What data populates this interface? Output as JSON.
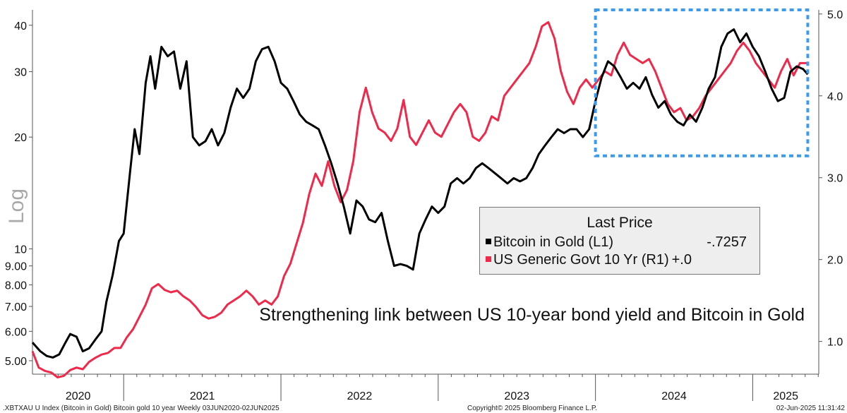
{
  "chart_data": {
    "type": "line",
    "title": "",
    "annotation": "Strengthening link between US 10-year bond yield and Bitcoin in Gold",
    "left_axis": {
      "label": "Log",
      "scale": "log",
      "range": [
        4.6,
        44
      ],
      "ticks": [
        "40",
        "30",
        "20",
        "10",
        "9.00",
        "8.00",
        "7.00",
        "6.00",
        "5.00"
      ],
      "tick_values": [
        40,
        30,
        20,
        10,
        9,
        8,
        7,
        6,
        5
      ]
    },
    "right_axis": {
      "range": [
        0.6,
        5.05
      ],
      "ticks": [
        "5.0",
        "4.0",
        "3.0",
        "2.0",
        "1.0"
      ],
      "tick_values": [
        5,
        4,
        3,
        2,
        1
      ]
    },
    "x_axis": {
      "range": [
        2020.42,
        2025.42
      ],
      "year_labels": [
        "2020",
        "2021",
        "2022",
        "2023",
        "2024",
        "2025"
      ]
    },
    "legend": {
      "title": "Last Price",
      "entries": [
        {
          "name": "Bitcoin in Gold  (L1)",
          "value": "-.7257",
          "color": "#000000"
        },
        {
          "name": "US Generic Govt 10 Yr  (R1)",
          "value": "+.0",
          "color": "#f0284a"
        }
      ]
    },
    "highlight_box": {
      "x_range": [
        2024.0,
        2025.35
      ],
      "left_y_range": [
        17.8,
        44
      ],
      "color": "#3d9be9"
    },
    "series": [
      {
        "name": "Bitcoin in Gold",
        "axis": "left",
        "color": "#000000",
        "points": [
          [
            2020.42,
            5.6
          ],
          [
            2020.47,
            5.3
          ],
          [
            2020.51,
            5.15
          ],
          [
            2020.55,
            5.1
          ],
          [
            2020.59,
            5.2
          ],
          [
            2020.63,
            5.6
          ],
          [
            2020.66,
            5.9
          ],
          [
            2020.7,
            5.8
          ],
          [
            2020.74,
            5.3
          ],
          [
            2020.78,
            5.4
          ],
          [
            2020.82,
            5.7
          ],
          [
            2020.86,
            6.0
          ],
          [
            2020.89,
            7.2
          ],
          [
            2020.93,
            8.5
          ],
          [
            2020.97,
            10.5
          ],
          [
            2021.0,
            11
          ],
          [
            2021.04,
            16
          ],
          [
            2021.07,
            21
          ],
          [
            2021.1,
            18
          ],
          [
            2021.14,
            28
          ],
          [
            2021.17,
            33
          ],
          [
            2021.2,
            27
          ],
          [
            2021.24,
            35
          ],
          [
            2021.28,
            33
          ],
          [
            2021.32,
            34
          ],
          [
            2021.36,
            27
          ],
          [
            2021.4,
            32
          ],
          [
            2021.44,
            20
          ],
          [
            2021.48,
            19
          ],
          [
            2021.52,
            19.5
          ],
          [
            2021.56,
            21
          ],
          [
            2021.6,
            19
          ],
          [
            2021.64,
            20.5
          ],
          [
            2021.68,
            24
          ],
          [
            2021.72,
            27
          ],
          [
            2021.76,
            25.5
          ],
          [
            2021.8,
            27
          ],
          [
            2021.84,
            32
          ],
          [
            2021.88,
            34.5
          ],
          [
            2021.92,
            35
          ],
          [
            2021.96,
            32
          ],
          [
            2022.0,
            28
          ],
          [
            2022.04,
            27
          ],
          [
            2022.08,
            25
          ],
          [
            2022.12,
            23
          ],
          [
            2022.16,
            22
          ],
          [
            2022.2,
            21.5
          ],
          [
            2022.24,
            21
          ],
          [
            2022.28,
            19
          ],
          [
            2022.32,
            17
          ],
          [
            2022.36,
            15
          ],
          [
            2022.4,
            13
          ],
          [
            2022.44,
            11
          ],
          [
            2022.48,
            13.5
          ],
          [
            2022.52,
            13
          ],
          [
            2022.56,
            12
          ],
          [
            2022.6,
            11.8
          ],
          [
            2022.64,
            12.5
          ],
          [
            2022.68,
            10.5
          ],
          [
            2022.72,
            9.0
          ],
          [
            2022.76,
            9.1
          ],
          [
            2022.8,
            9.0
          ],
          [
            2022.84,
            8.8
          ],
          [
            2022.88,
            11
          ],
          [
            2022.92,
            12
          ],
          [
            2022.96,
            13
          ],
          [
            2023.0,
            12.5
          ],
          [
            2023.04,
            13
          ],
          [
            2023.08,
            15
          ],
          [
            2023.12,
            15.5
          ],
          [
            2023.16,
            15
          ],
          [
            2023.2,
            15.5
          ],
          [
            2023.24,
            16.5
          ],
          [
            2023.28,
            17
          ],
          [
            2023.32,
            16.5
          ],
          [
            2023.36,
            16
          ],
          [
            2023.4,
            15.5
          ],
          [
            2023.44,
            15
          ],
          [
            2023.48,
            15.5
          ],
          [
            2023.52,
            15.2
          ],
          [
            2023.56,
            15.5
          ],
          [
            2023.6,
            16.5
          ],
          [
            2023.64,
            18
          ],
          [
            2023.68,
            19
          ],
          [
            2023.72,
            20
          ],
          [
            2023.76,
            21
          ],
          [
            2023.8,
            20.5
          ],
          [
            2023.84,
            21
          ],
          [
            2023.88,
            21
          ],
          [
            2023.92,
            20
          ],
          [
            2023.96,
            21
          ],
          [
            2024.0,
            25
          ],
          [
            2024.04,
            29
          ],
          [
            2024.08,
            32
          ],
          [
            2024.12,
            31
          ],
          [
            2024.16,
            29
          ],
          [
            2024.2,
            27
          ],
          [
            2024.24,
            28
          ],
          [
            2024.28,
            27
          ],
          [
            2024.32,
            29
          ],
          [
            2024.36,
            26
          ],
          [
            2024.4,
            24
          ],
          [
            2024.44,
            25
          ],
          [
            2024.48,
            23
          ],
          [
            2024.52,
            22
          ],
          [
            2024.56,
            21.5
          ],
          [
            2024.6,
            23
          ],
          [
            2024.64,
            22
          ],
          [
            2024.68,
            24
          ],
          [
            2024.72,
            27
          ],
          [
            2024.76,
            29
          ],
          [
            2024.8,
            35
          ],
          [
            2024.84,
            38
          ],
          [
            2024.88,
            39
          ],
          [
            2024.92,
            36
          ],
          [
            2024.96,
            38
          ],
          [
            2025.0,
            35
          ],
          [
            2025.04,
            33
          ],
          [
            2025.08,
            30
          ],
          [
            2025.12,
            27
          ],
          [
            2025.16,
            25
          ],
          [
            2025.2,
            25.5
          ],
          [
            2025.24,
            30
          ],
          [
            2025.28,
            31
          ],
          [
            2025.32,
            30.5
          ],
          [
            2025.35,
            29.5
          ]
        ]
      },
      {
        "name": "US Generic Govt 10 Yr",
        "axis": "right",
        "color": "#f0284a",
        "points": [
          [
            2020.42,
            0.88
          ],
          [
            2020.46,
            0.68
          ],
          [
            2020.5,
            0.64
          ],
          [
            2020.54,
            0.62
          ],
          [
            2020.58,
            0.56
          ],
          [
            2020.62,
            0.58
          ],
          [
            2020.66,
            0.65
          ],
          [
            2020.7,
            0.68
          ],
          [
            2020.74,
            0.66
          ],
          [
            2020.78,
            0.75
          ],
          [
            2020.82,
            0.8
          ],
          [
            2020.86,
            0.84
          ],
          [
            2020.9,
            0.86
          ],
          [
            2020.94,
            0.92
          ],
          [
            2020.98,
            0.92
          ],
          [
            2021.02,
            1.05
          ],
          [
            2021.06,
            1.15
          ],
          [
            2021.1,
            1.3
          ],
          [
            2021.14,
            1.45
          ],
          [
            2021.18,
            1.65
          ],
          [
            2021.22,
            1.7
          ],
          [
            2021.26,
            1.63
          ],
          [
            2021.3,
            1.6
          ],
          [
            2021.34,
            1.62
          ],
          [
            2021.38,
            1.55
          ],
          [
            2021.42,
            1.5
          ],
          [
            2021.46,
            1.42
          ],
          [
            2021.5,
            1.32
          ],
          [
            2021.54,
            1.28
          ],
          [
            2021.58,
            1.3
          ],
          [
            2021.62,
            1.35
          ],
          [
            2021.66,
            1.45
          ],
          [
            2021.7,
            1.5
          ],
          [
            2021.74,
            1.55
          ],
          [
            2021.78,
            1.62
          ],
          [
            2021.82,
            1.55
          ],
          [
            2021.86,
            1.45
          ],
          [
            2021.9,
            1.5
          ],
          [
            2021.94,
            1.45
          ],
          [
            2021.98,
            1.55
          ],
          [
            2022.02,
            1.8
          ],
          [
            2022.06,
            1.95
          ],
          [
            2022.1,
            2.2
          ],
          [
            2022.14,
            2.45
          ],
          [
            2022.18,
            2.8
          ],
          [
            2022.22,
            3.05
          ],
          [
            2022.26,
            2.9
          ],
          [
            2022.3,
            3.2
          ],
          [
            2022.34,
            2.9
          ],
          [
            2022.38,
            2.7
          ],
          [
            2022.42,
            2.85
          ],
          [
            2022.46,
            3.2
          ],
          [
            2022.5,
            3.8
          ],
          [
            2022.54,
            4.1
          ],
          [
            2022.58,
            3.8
          ],
          [
            2022.62,
            3.6
          ],
          [
            2022.66,
            3.55
          ],
          [
            2022.7,
            3.45
          ],
          [
            2022.74,
            3.6
          ],
          [
            2022.78,
            3.95
          ],
          [
            2022.82,
            3.5
          ],
          [
            2022.86,
            3.4
          ],
          [
            2022.9,
            3.55
          ],
          [
            2022.94,
            3.7
          ],
          [
            2022.98,
            3.55
          ],
          [
            2023.02,
            3.5
          ],
          [
            2023.06,
            3.65
          ],
          [
            2023.1,
            3.8
          ],
          [
            2023.14,
            3.9
          ],
          [
            2023.18,
            3.8
          ],
          [
            2023.22,
            3.5
          ],
          [
            2023.26,
            3.45
          ],
          [
            2023.3,
            3.55
          ],
          [
            2023.34,
            3.75
          ],
          [
            2023.38,
            3.7
          ],
          [
            2023.42,
            4.0
          ],
          [
            2023.46,
            4.1
          ],
          [
            2023.5,
            4.2
          ],
          [
            2023.54,
            4.3
          ],
          [
            2023.58,
            4.4
          ],
          [
            2023.62,
            4.6
          ],
          [
            2023.66,
            4.85
          ],
          [
            2023.7,
            4.9
          ],
          [
            2023.74,
            4.7
          ],
          [
            2023.78,
            4.3
          ],
          [
            2023.82,
            4.05
          ],
          [
            2023.86,
            3.9
          ],
          [
            2023.9,
            4.1
          ],
          [
            2023.94,
            4.2
          ],
          [
            2023.98,
            4.1
          ],
          [
            2024.02,
            4.2
          ],
          [
            2024.06,
            4.3
          ],
          [
            2024.1,
            4.25
          ],
          [
            2024.14,
            4.5
          ],
          [
            2024.18,
            4.65
          ],
          [
            2024.22,
            4.5
          ],
          [
            2024.26,
            4.45
          ],
          [
            2024.3,
            4.4
          ],
          [
            2024.34,
            4.45
          ],
          [
            2024.38,
            4.3
          ],
          [
            2024.42,
            4.1
          ],
          [
            2024.46,
            3.9
          ],
          [
            2024.5,
            3.8
          ],
          [
            2024.54,
            3.85
          ],
          [
            2024.58,
            3.7
          ],
          [
            2024.62,
            3.75
          ],
          [
            2024.66,
            3.85
          ],
          [
            2024.7,
            4.0
          ],
          [
            2024.74,
            4.1
          ],
          [
            2024.78,
            4.2
          ],
          [
            2024.82,
            4.3
          ],
          [
            2024.86,
            4.4
          ],
          [
            2024.9,
            4.55
          ],
          [
            2024.94,
            4.65
          ],
          [
            2024.98,
            4.55
          ],
          [
            2025.02,
            4.4
          ],
          [
            2025.06,
            4.3
          ],
          [
            2025.1,
            4.2
          ],
          [
            2025.14,
            4.1
          ],
          [
            2025.18,
            4.3
          ],
          [
            2025.22,
            4.45
          ],
          [
            2025.26,
            4.25
          ],
          [
            2025.3,
            4.4
          ],
          [
            2025.35,
            4.4
          ]
        ]
      }
    ]
  },
  "footer": {
    "left": ".XBTXAU U Index (Bitcoin in Gold) Bitcoin gold 10 year  Weekly 03JUN2020-02JUN2025",
    "center": "Copyright© 2025 Bloomberg Finance L.P.",
    "right": "02-Jun-2025 11:31:42"
  }
}
